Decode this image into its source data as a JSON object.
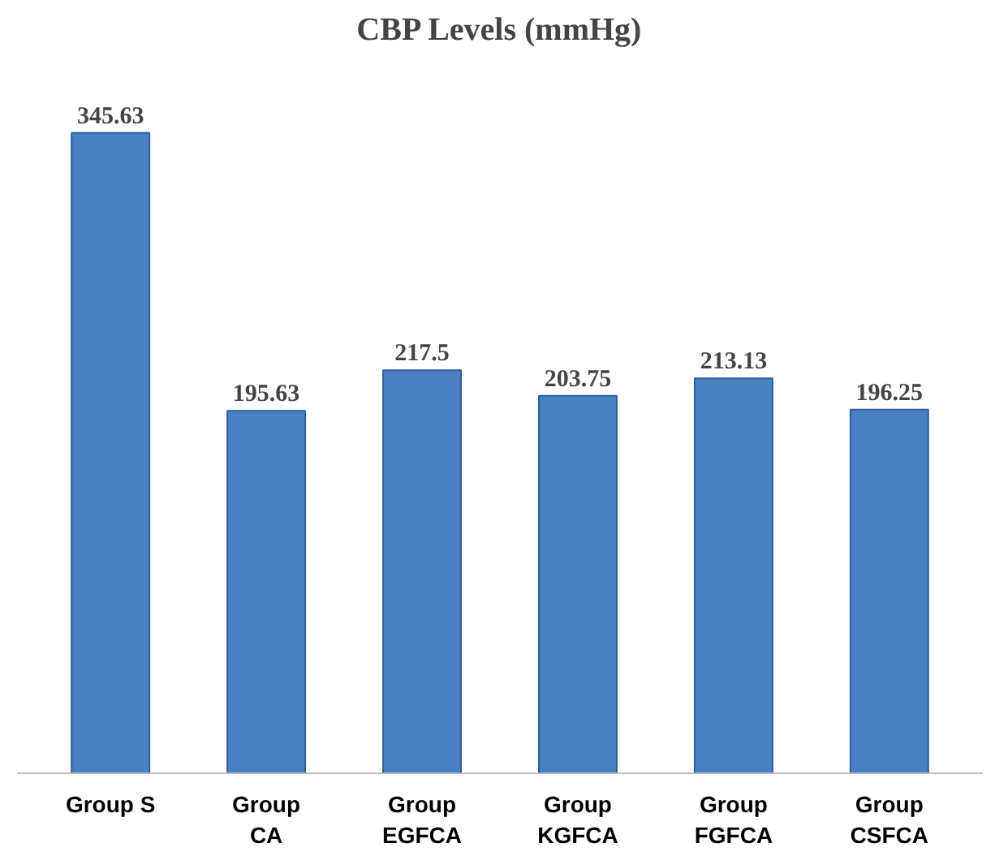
{
  "chart_data": {
    "type": "bar",
    "title": "CBP Levels (mmHg)",
    "categories": [
      "Group S",
      "Group\nCA",
      "Group\nEGFCA",
      "Group\nKGFCA",
      "Group\nFGFCA",
      "Group\nCSFCA"
    ],
    "values": [
      345.63,
      195.63,
      217.5,
      203.75,
      213.13,
      196.25
    ],
    "color": "#4a7fc1",
    "data_labels": true,
    "grid": false
  }
}
